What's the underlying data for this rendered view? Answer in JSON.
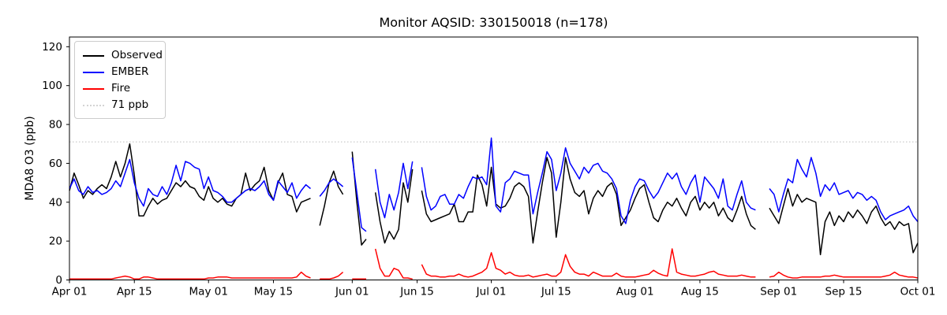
{
  "chart_data": {
    "type": "line",
    "title": "Monitor AQSID: 330150018 (n=178)",
    "xlabel": "",
    "ylabel": "MDA8 O3 (ppb)",
    "ylim": [
      0,
      125
    ],
    "yticks": [
      0,
      20,
      40,
      60,
      80,
      100,
      120
    ],
    "grid": false,
    "legend_position": "upper left",
    "x_start_label": "Apr 01",
    "x_end_label": "Oct 01",
    "n_days": 184,
    "n_points": 178,
    "x_ticks": [
      {
        "day": 0,
        "label": "Apr 01"
      },
      {
        "day": 14,
        "label": "Apr 15"
      },
      {
        "day": 30,
        "label": "May 01"
      },
      {
        "day": 44,
        "label": "May 15"
      },
      {
        "day": 61,
        "label": "Jun 01"
      },
      {
        "day": 75,
        "label": "Jun 15"
      },
      {
        "day": 91,
        "label": "Jul 01"
      },
      {
        "day": 105,
        "label": "Jul 15"
      },
      {
        "day": 122,
        "label": "Aug 01"
      },
      {
        "day": 136,
        "label": "Aug 15"
      },
      {
        "day": 153,
        "label": "Sep 01"
      },
      {
        "day": 167,
        "label": "Sep 15"
      },
      {
        "day": 183,
        "label": "Oct 01"
      }
    ],
    "threshold": {
      "value": 71,
      "label": "71 ppb",
      "color": "#d3d3d3",
      "style": "dotted"
    },
    "series": [
      {
        "name": "Observed",
        "color": "#000000",
        "values": [
          46,
          55,
          49,
          42,
          46,
          44,
          47,
          49,
          47,
          53,
          61,
          53,
          60,
          70,
          54,
          33,
          33,
          38,
          42,
          39,
          41,
          42,
          46,
          50,
          48,
          51,
          48,
          47,
          43,
          41,
          48,
          42,
          40,
          42,
          39,
          38,
          42,
          44,
          55,
          46,
          49,
          51,
          58,
          46,
          41,
          50,
          55,
          44,
          43,
          35,
          40,
          41,
          42,
          null,
          28,
          38,
          50,
          56,
          48,
          44,
          null,
          66,
          40,
          18,
          21,
          null,
          45,
          30,
          19,
          25,
          21,
          26,
          50,
          40,
          57,
          null,
          46,
          34,
          30,
          31,
          32,
          33,
          34,
          39,
          30,
          30,
          35,
          35,
          54,
          49,
          38,
          58,
          39,
          37,
          38,
          42,
          48,
          50,
          48,
          43,
          19,
          35,
          50,
          63,
          55,
          22,
          40,
          63,
          52,
          45,
          43,
          46,
          34,
          42,
          46,
          43,
          48,
          50,
          44,
          28,
          32,
          36,
          42,
          47,
          49,
          40,
          32,
          30,
          36,
          40,
          38,
          42,
          37,
          33,
          40,
          43,
          36,
          40,
          37,
          40,
          33,
          37,
          32,
          30,
          36,
          43,
          34,
          28,
          26,
          null,
          null,
          37,
          33,
          29,
          38,
          47,
          38,
          44,
          40,
          42,
          41,
          40,
          13,
          30,
          35,
          28,
          33,
          30,
          35,
          32,
          36,
          33,
          29,
          35,
          38,
          32,
          28,
          30,
          26,
          30,
          28,
          29,
          14,
          19
        ]
      },
      {
        "name": "EMBER",
        "color": "#0000ff",
        "values": [
          47,
          52,
          46,
          44,
          48,
          45,
          46,
          44,
          45,
          47,
          51,
          48,
          55,
          62,
          50,
          42,
          38,
          47,
          44,
          43,
          48,
          44,
          50,
          59,
          51,
          61,
          60,
          58,
          57,
          47,
          53,
          46,
          45,
          43,
          40,
          40,
          42,
          44,
          46,
          47,
          46,
          48,
          51,
          44,
          41,
          51,
          48,
          45,
          50,
          42,
          46,
          49,
          47,
          null,
          43,
          46,
          50,
          52,
          50,
          48,
          null,
          63,
          45,
          27,
          25,
          null,
          57,
          40,
          32,
          44,
          36,
          45,
          60,
          47,
          61,
          null,
          58,
          43,
          36,
          38,
          43,
          44,
          39,
          39,
          44,
          42,
          48,
          53,
          52,
          53,
          49,
          73,
          38,
          35,
          50,
          52,
          56,
          55,
          54,
          54,
          34,
          45,
          55,
          66,
          62,
          46,
          55,
          68,
          60,
          56,
          52,
          58,
          55,
          59,
          60,
          56,
          55,
          52,
          47,
          33,
          29,
          41,
          48,
          52,
          51,
          46,
          42,
          45,
          50,
          55,
          52,
          55,
          48,
          44,
          50,
          54,
          40,
          53,
          50,
          47,
          42,
          52,
          38,
          36,
          44,
          51,
          40,
          37,
          36,
          null,
          null,
          47,
          44,
          35,
          44,
          52,
          50,
          62,
          57,
          53,
          63,
          55,
          43,
          49,
          46,
          50,
          44,
          45,
          46,
          42,
          45,
          44,
          41,
          43,
          41,
          35,
          31,
          33,
          34,
          35,
          36,
          38,
          33,
          30
        ]
      },
      {
        "name": "Fire",
        "color": "#ff0000",
        "values": [
          0.5,
          0.5,
          0.5,
          0.5,
          0.5,
          0.5,
          0.5,
          0.5,
          0.5,
          0.5,
          1,
          1.5,
          2,
          1.5,
          0.5,
          0.5,
          1.5,
          1.5,
          1,
          0.5,
          0.5,
          0.5,
          0.5,
          0.5,
          0.5,
          0.5,
          0.5,
          0.5,
          0.5,
          0.5,
          1,
          1,
          1.5,
          1.5,
          1.5,
          1,
          1,
          1,
          1,
          1,
          1,
          1,
          1,
          1,
          1,
          1,
          1,
          1,
          1,
          1.5,
          4,
          2,
          1,
          null,
          0.5,
          0.5,
          0.5,
          1,
          2,
          4,
          null,
          0.5,
          0.5,
          0.5,
          0.5,
          null,
          16,
          6,
          2,
          2,
          6,
          5,
          1,
          1,
          0.5,
          null,
          8,
          3,
          2,
          2,
          1.5,
          1.5,
          2,
          2,
          3,
          2,
          1.5,
          2,
          3,
          4,
          6,
          14,
          6,
          5,
          3,
          4,
          2.5,
          2,
          2,
          2.5,
          1.5,
          2,
          2.5,
          3,
          2,
          2,
          4,
          13,
          7,
          4,
          3,
          3,
          2,
          4,
          3,
          2,
          2,
          2,
          3.5,
          2,
          1.5,
          1.5,
          1.5,
          2,
          2.5,
          3,
          5,
          3.5,
          2.5,
          2,
          16,
          4,
          3,
          2.5,
          2,
          2,
          2.5,
          3,
          4,
          4.5,
          3,
          2.5,
          2,
          2,
          2,
          2.5,
          2,
          1.5,
          1.5,
          null,
          null,
          1.5,
          2,
          4,
          2.5,
          1.5,
          1,
          1,
          1.5,
          1.5,
          1.5,
          1.5,
          1.5,
          2,
          2,
          2.5,
          2,
          1.5,
          1.5,
          1.5,
          1.5,
          1.5,
          1.5,
          1.5,
          1.5,
          1.5,
          2,
          2.5,
          4,
          2.5,
          2,
          1.5,
          1.5,
          1
        ]
      }
    ]
  },
  "legend": {
    "items": [
      {
        "label": "Observed"
      },
      {
        "label": "EMBER"
      },
      {
        "label": "Fire"
      },
      {
        "label": "71 ppb"
      }
    ]
  }
}
